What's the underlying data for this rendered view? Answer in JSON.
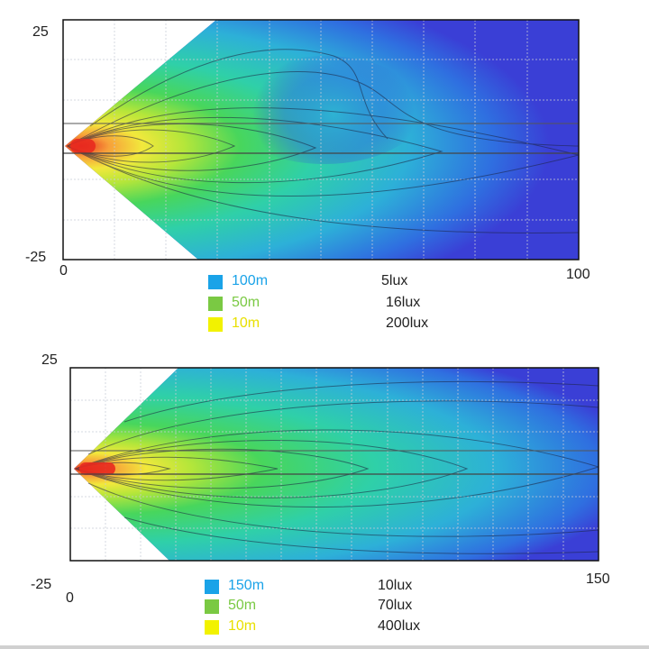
{
  "chart_data": [
    {
      "type": "heatmap",
      "title": "",
      "xlabel": "",
      "ylabel": "",
      "xlim": [
        0,
        100
      ],
      "ylim": [
        -25,
        25
      ],
      "x_ticks": [
        "0",
        "100"
      ],
      "y_ticks": [
        "25",
        "-25"
      ],
      "grid": true,
      "reference_line_y": 10,
      "colormap": [
        "#3a3fd6",
        "#2f6fe0",
        "#2db0d8",
        "#2fd0a8",
        "#48d65c",
        "#b5e63a",
        "#f2e83c",
        "#f7a03a",
        "#e82a1f"
      ],
      "legend": [
        {
          "distance": "100m",
          "illuminance": "5lux",
          "color": "#1aa3e8"
        },
        {
          "distance": "50m",
          "illuminance": "16lux",
          "color": "#7ac943"
        },
        {
          "distance": "10m",
          "illuminance": "200lux",
          "color": "#f2f200"
        }
      ]
    },
    {
      "type": "heatmap",
      "title": "",
      "xlabel": "",
      "ylabel": "",
      "xlim": [
        0,
        150
      ],
      "ylim": [
        -25,
        25
      ],
      "x_ticks": [
        "0",
        "150"
      ],
      "y_ticks": [
        "25",
        "-25"
      ],
      "grid": true,
      "reference_line_y": 10,
      "colormap": [
        "#3a3fd6",
        "#2f6fe0",
        "#2db0d8",
        "#2fd0a8",
        "#48d65c",
        "#b5e63a",
        "#f2e83c",
        "#f7a03a",
        "#e82a1f"
      ],
      "legend": [
        {
          "distance": "150m",
          "illuminance": "10lux",
          "color": "#1aa3e8"
        },
        {
          "distance": "50m",
          "illuminance": "70lux",
          "color": "#7ac943"
        },
        {
          "distance": "10m",
          "illuminance": "400lux",
          "color": "#f2f200"
        }
      ]
    }
  ]
}
